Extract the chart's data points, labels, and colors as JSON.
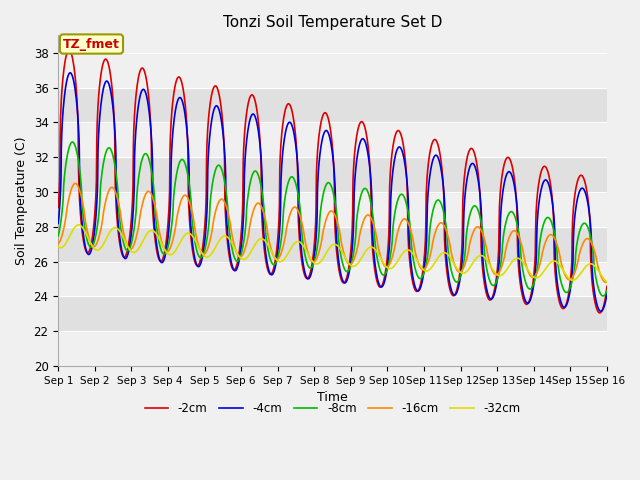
{
  "title": "Tonzi Soil Temperature Set D",
  "xlabel": "Time",
  "ylabel": "Soil Temperature (C)",
  "annotation": "TZ_fmet",
  "ylim": [
    20,
    39
  ],
  "xlim_start": 0,
  "xlim_end": 15,
  "xtick_labels": [
    "Sep 1",
    "Sep 2",
    "Sep 3",
    "Sep 4",
    "Sep 5",
    "Sep 6",
    "Sep 7",
    "Sep 8",
    "Sep 9",
    "Sep 10",
    "Sep 11",
    "Sep 12",
    "Sep 13",
    "Sep 14",
    "Sep 15",
    "Sep 16"
  ],
  "ytick_vals": [
    20,
    22,
    24,
    26,
    28,
    30,
    32,
    34,
    36,
    38
  ],
  "series_colors": [
    "#dd0000",
    "#0000dd",
    "#00bb00",
    "#ff8800",
    "#dddd00"
  ],
  "series_labels": [
    "-2cm",
    "-4cm",
    "-8cm",
    "-16cm",
    "-32cm"
  ],
  "bg_light": "#f0f0f0",
  "bg_dark": "#e0e0e0",
  "annotation_bg": "#ffffcc",
  "annotation_border": "#999900",
  "annotation_text_color": "#cc0000",
  "n_days": 15,
  "pts_per_day": 96
}
